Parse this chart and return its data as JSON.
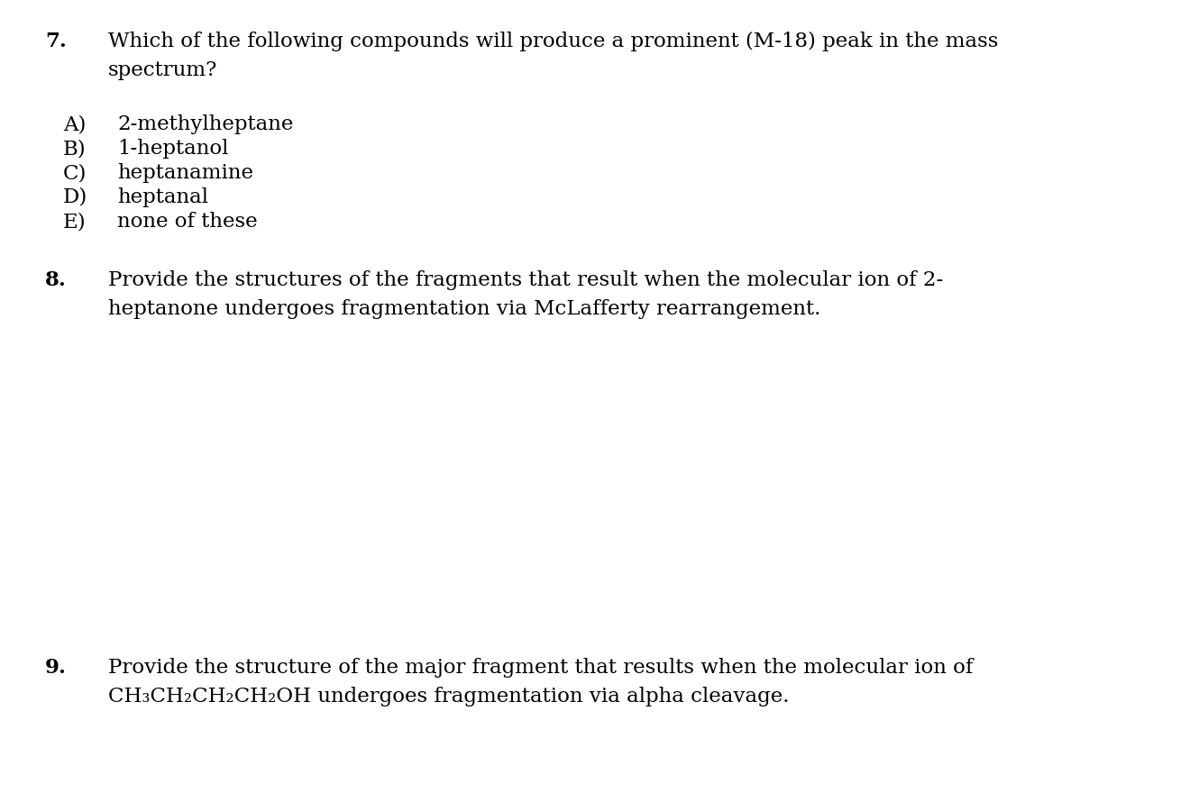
{
  "background_color": "#ffffff",
  "text_color": "#000000",
  "font_family": "DejaVu Serif",
  "q7_number": "7.",
  "q7_line1": "Which of the following compounds will produce a prominent (M-18) peak in the mass",
  "q7_line2": "spectrum?",
  "q7_options_letter": [
    "A)",
    "B)",
    "C)",
    "D)",
    "E)"
  ],
  "q7_options_text": [
    "2-methylheptane",
    "1-heptanol",
    "heptanamine",
    "heptanal",
    "none of these"
  ],
  "q8_number": "8.",
  "q8_line1": "Provide the structures of the fragments that result when the molecular ion of 2-",
  "q8_line2": "heptanone undergoes fragmentation via McLafferty rearrangement.",
  "q9_number": "9.",
  "q9_line1": "Provide the structure of the major fragment that results when the molecular ion of",
  "q9_line2": "CH₃CH₂CH₂CH₂OH undergoes fragmentation via alpha cleavage.",
  "fontsize": 16.5,
  "fig_width": 13.3,
  "fig_height": 8.8,
  "dpi": 100
}
